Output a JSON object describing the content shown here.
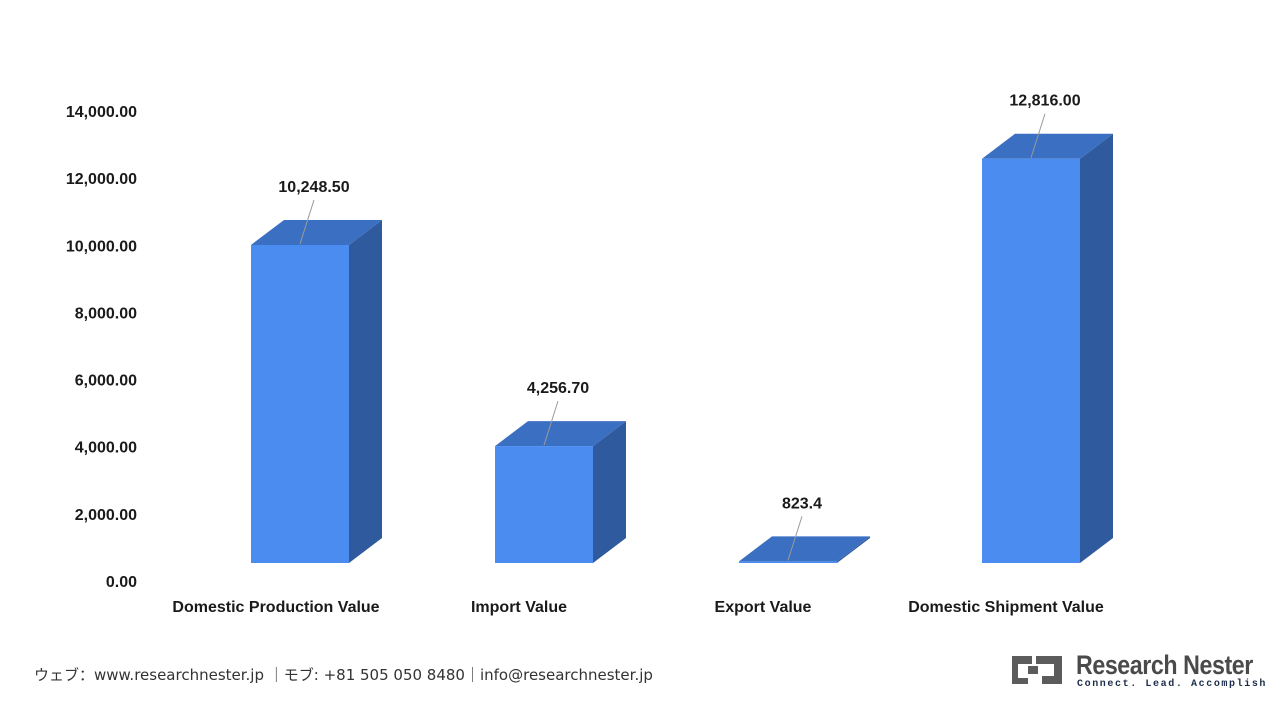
{
  "chart_data": {
    "type": "bar",
    "style": "3d-column",
    "categories": [
      "Domestic Production Value",
      "Import Value",
      "Export Value",
      "Domestic Shipment Value"
    ],
    "values": [
      10248.5,
      4256.7,
      823.4,
      12816.0
    ],
    "data_labels": [
      "10,248.50",
      "4,256.70",
      "823.4",
      "12,816.00"
    ],
    "yticks": [
      "0.00",
      "2,000.00",
      "4,000.00",
      "6,000.00",
      "8,000.00",
      "10,000.00",
      "12,000.00",
      "14,000.00"
    ],
    "ylim": [
      0,
      14000
    ],
    "grid": false,
    "legend": "none",
    "colors": {
      "front": "#4a8cf0",
      "top": "#3b6fc2",
      "side": "#2f5a9e",
      "leader": "#9a9a9a"
    }
  },
  "footer": {
    "contact": "ウェブ：www.researchnester.jp ｜モブ: +81 505 050 8480｜info@researchnester.jp"
  },
  "logo": {
    "name": "Research Nester",
    "tagline": "Connect. Lead. Accomplish",
    "colors": {
      "mark": "#5c5c5c",
      "name": "#4a4a4a",
      "tagline": "#1c2d4a"
    }
  }
}
